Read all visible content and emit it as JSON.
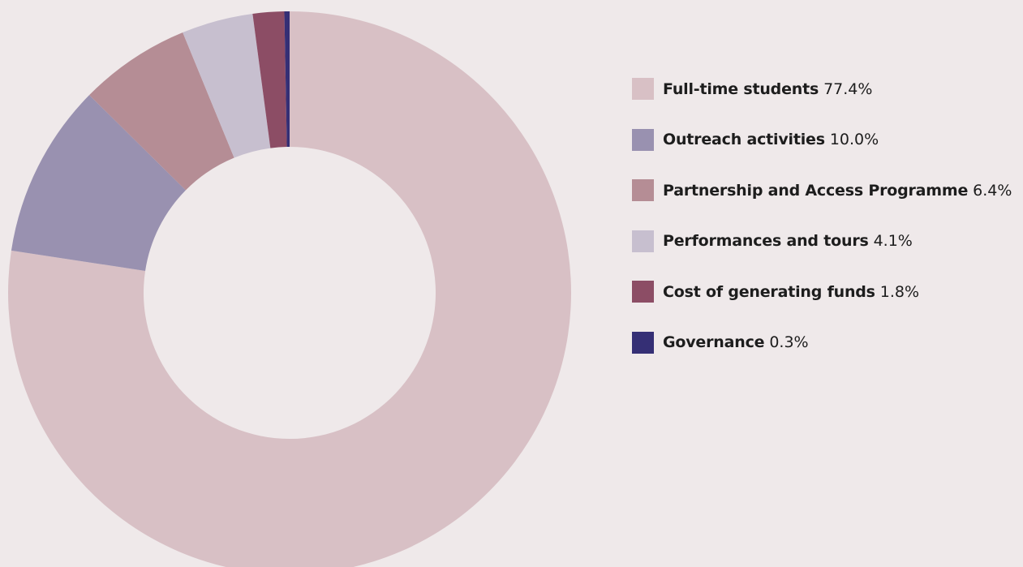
{
  "chart_data": {
    "type": "pie",
    "donut": true,
    "legend_position": "right",
    "slices": [
      {
        "label": "Full-time students",
        "value": 77.4,
        "display": "77.4%",
        "color": "#d8c0c5"
      },
      {
        "label": "Outreach activities",
        "value": 10.0,
        "display": "10.0%",
        "color": "#9991b0"
      },
      {
        "label": "Partnership and Access Programme",
        "value": 6.4,
        "display": "6.4%",
        "color": "#b58d95"
      },
      {
        "label": "Performances and tours",
        "value": 4.1,
        "display": "4.1%",
        "color": "#c7bfcf"
      },
      {
        "label": "Cost of generating funds",
        "value": 1.8,
        "display": "1.8%",
        "color": "#8c4d65"
      },
      {
        "label": "Governance",
        "value": 0.3,
        "display": "0.3%",
        "color": "#352f75"
      }
    ]
  }
}
